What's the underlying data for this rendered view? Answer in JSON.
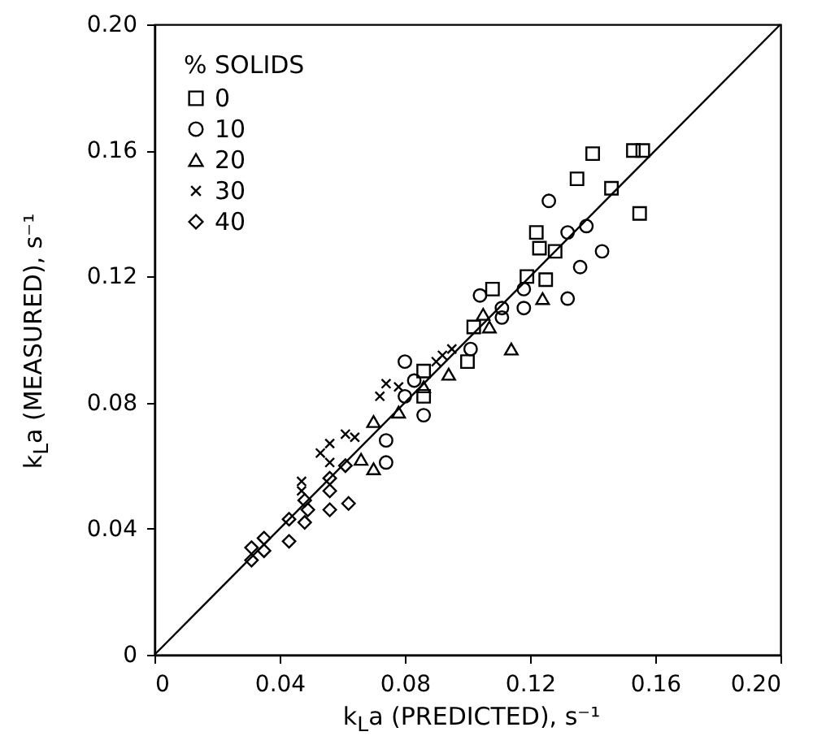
{
  "chart_data": {
    "type": "scatter",
    "xlabel": "k$_{L}$a (PREDICTED), s⁻¹",
    "ylabel": "k$_{L}$a (MEASURED), s⁻¹",
    "legend_title": "% SOLIDS",
    "legend": "top left",
    "grid": false,
    "xlim": [
      0,
      0.2
    ],
    "ylim": [
      0,
      0.2
    ],
    "xticks": [
      0,
      0.04,
      0.08,
      0.12,
      0.16,
      {
        "value": 0.2,
        "label": "0.20"
      }
    ],
    "yticks": [
      0,
      0.04,
      0.08,
      0.12,
      0.16,
      {
        "value": 0.2,
        "label": "0.20"
      }
    ],
    "series": [
      {
        "name": "0",
        "color": "#000000",
        "marker": "square",
        "x": [
          0.153,
          0.156,
          0.14,
          0.135,
          0.146,
          0.155,
          0.122,
          0.123,
          0.128,
          0.125,
          0.119,
          0.108,
          0.102,
          0.1,
          0.086,
          0.086
        ],
        "values": [
          0.16,
          0.16,
          0.159,
          0.151,
          0.148,
          0.14,
          0.134,
          0.129,
          0.128,
          0.119,
          0.12,
          0.116,
          0.104,
          0.093,
          0.09,
          0.082
        ]
      },
      {
        "name": "10",
        "color": "#000000",
        "marker": "circle",
        "x": [
          0.126,
          0.132,
          0.138,
          0.143,
          0.136,
          0.132,
          0.118,
          0.104,
          0.118,
          0.111,
          0.111,
          0.101,
          0.08,
          0.083,
          0.08,
          0.086,
          0.074,
          0.074
        ],
        "values": [
          0.144,
          0.134,
          0.136,
          0.128,
          0.123,
          0.113,
          0.11,
          0.114,
          0.116,
          0.107,
          0.11,
          0.097,
          0.093,
          0.087,
          0.082,
          0.076,
          0.068,
          0.061
        ]
      },
      {
        "name": "20",
        "color": "#000000",
        "marker": "triangle",
        "x": [
          0.114,
          0.124,
          0.105,
          0.107,
          0.094,
          0.078,
          0.07,
          0.066,
          0.07,
          0.086
        ],
        "values": [
          0.097,
          0.113,
          0.108,
          0.104,
          0.089,
          0.077,
          0.074,
          0.062,
          0.059,
          0.085
        ]
      },
      {
        "name": "30",
        "color": "#000000",
        "marker": "cross",
        "x": [
          0.074,
          0.078,
          0.072,
          0.061,
          0.056,
          0.053,
          0.064,
          0.047,
          0.047,
          0.092,
          0.095,
          0.09,
          0.056
        ],
        "values": [
          0.086,
          0.085,
          0.082,
          0.07,
          0.067,
          0.064,
          0.069,
          0.055,
          0.052,
          0.095,
          0.097,
          0.093,
          0.061
        ]
      },
      {
        "name": "40",
        "color": "#000000",
        "marker": "diamond",
        "x": [
          0.031,
          0.031,
          0.035,
          0.035,
          0.043,
          0.043,
          0.048,
          0.049,
          0.048,
          0.056,
          0.056,
          0.062,
          0.056,
          0.061
        ],
        "values": [
          0.03,
          0.034,
          0.037,
          0.033,
          0.043,
          0.036,
          0.042,
          0.046,
          0.049,
          0.046,
          0.052,
          0.048,
          0.056,
          0.06
        ]
      },
      {
        "type": "line",
        "color": "#000000",
        "x": [
          0,
          0.2
        ],
        "values": [
          0,
          0.2
        ]
      }
    ]
  }
}
